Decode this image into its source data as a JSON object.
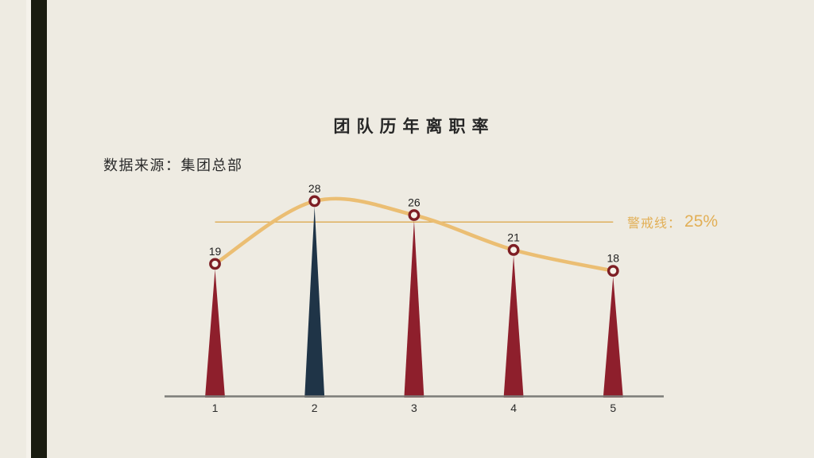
{
  "slide": {
    "title": "团队历年离职率",
    "source_note": "数据来源：集团总部"
  },
  "chart_data": {
    "type": "line",
    "title": "团队历年离职率",
    "source_note": "数据来源：集团总部",
    "categories": [
      "1",
      "2",
      "3",
      "4",
      "5"
    ],
    "series": [
      {
        "name": "离职率",
        "values": [
          19,
          28,
          26,
          21,
          18
        ]
      }
    ],
    "point_labels": [
      "19",
      "28",
      "26",
      "21",
      "18"
    ],
    "threshold": {
      "label": "警戒线：",
      "value_text": "25%",
      "value": 25
    },
    "ylim": [
      0,
      30
    ],
    "xlabel": "",
    "ylabel": "",
    "grid": false,
    "legend_position": "none",
    "highlight_index": 1,
    "colors": {
      "background": "#EEEBE2",
      "accent_bar": "#1A1C10",
      "spike": "#8E1F2C",
      "spike_highlight": "#1F3447",
      "curve": "#EBBE73",
      "threshold_line": "#DEAF5D",
      "threshold_text": "#E2AF56",
      "marker_ring": "#7D1E24",
      "marker_fill": "#F6F2E9",
      "axis": "#7C7C78",
      "text": "#1F1F1F"
    }
  }
}
